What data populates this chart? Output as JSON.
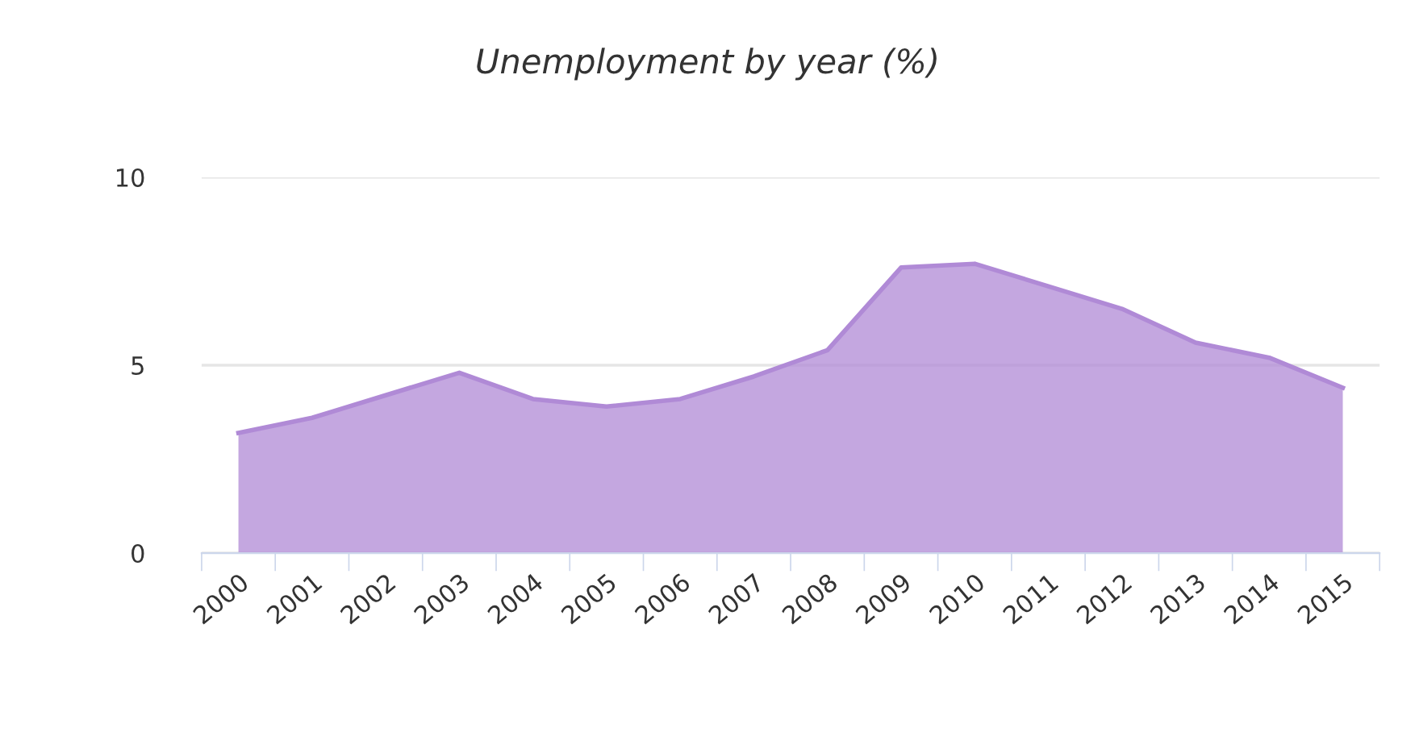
{
  "chart_data": {
    "type": "area",
    "title": "Unemployment by year (%)",
    "categories": [
      "2000",
      "2001",
      "2002",
      "2003",
      "2004",
      "2005",
      "2006",
      "2007",
      "2008",
      "2009",
      "2010",
      "2011",
      "2012",
      "2013",
      "2014",
      "2015"
    ],
    "series": [
      {
        "color": "#b08ad6",
        "values": [
          3.2,
          3.6,
          4.2,
          4.8,
          4.1,
          3.9,
          4.1,
          4.7,
          5.4,
          7.6,
          7.7,
          7.1,
          6.5,
          5.6,
          5.2,
          4.4
        ]
      }
    ],
    "ylim": [
      0,
      10
    ],
    "yticks": [
      0,
      5,
      10
    ],
    "grid": "y",
    "legend": false
  }
}
